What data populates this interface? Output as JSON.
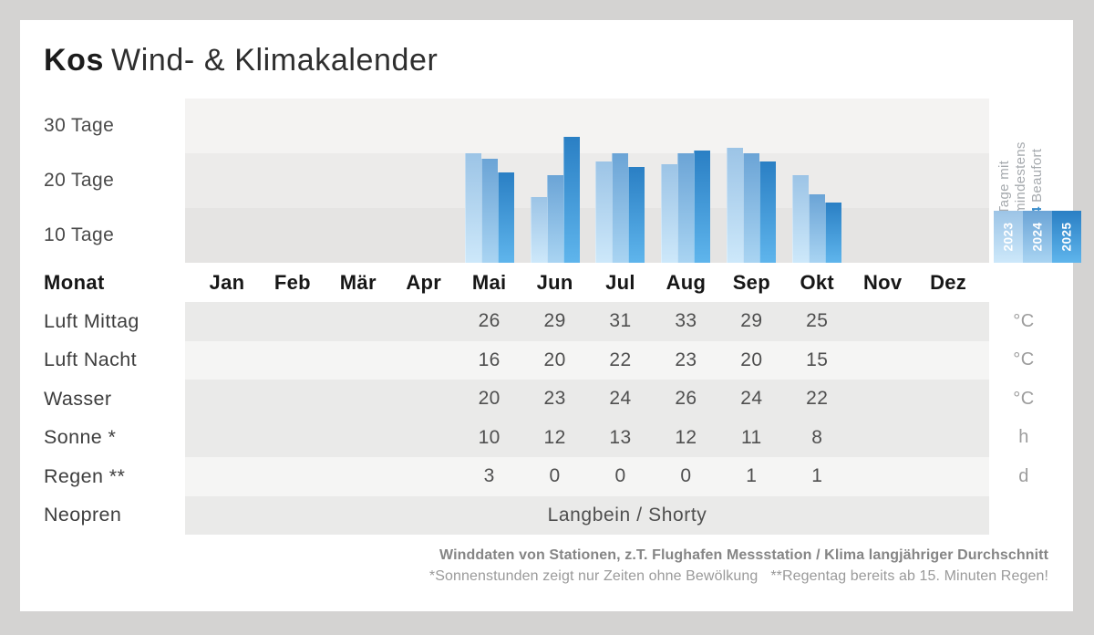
{
  "title": {
    "location": "Kos",
    "subtitle": "Wind- & Klimakalender"
  },
  "chart_data": {
    "type": "bar",
    "title": "Tage mit mindestens 4 Beaufort",
    "unit": "Tage",
    "categories": [
      "Jan",
      "Feb",
      "Mär",
      "Apr",
      "Mai",
      "Jun",
      "Jul",
      "Aug",
      "Sep",
      "Okt",
      "Nov",
      "Dez"
    ],
    "series": [
      {
        "name": "2023",
        "color_top": "#9cc4e6",
        "color_bottom": "#cde8fa",
        "values": [
          null,
          null,
          null,
          null,
          20,
          12,
          18.5,
          18,
          21,
          16,
          null,
          null
        ]
      },
      {
        "name": "2024",
        "color_top": "#6ba4d6",
        "color_bottom": "#a9d4f2",
        "values": [
          null,
          null,
          null,
          null,
          19,
          16,
          20,
          20,
          20,
          12.5,
          null,
          null
        ]
      },
      {
        "name": "2025",
        "color_top": "#2a7fc4",
        "color_bottom": "#5fb5ec",
        "values": [
          null,
          null,
          null,
          null,
          16.5,
          23,
          17.5,
          20.5,
          18.5,
          11,
          null,
          null
        ]
      }
    ],
    "ylim": [
      0,
      30
    ],
    "ytick_labels": [
      "30 Tage",
      "20 Tage",
      "10 Tage"
    ],
    "grid_band_colors": [
      "#f4f3f2",
      "#ecebea",
      "#e5e4e3"
    ],
    "legend_lines": [
      "Tage mit",
      "mindestens",
      "4 Beaufort"
    ],
    "legend_highlight": "4",
    "legend_position": "right-rotated"
  },
  "table": {
    "header_label": "Monat",
    "months": [
      "Jan",
      "Feb",
      "Mär",
      "Apr",
      "Mai",
      "Jun",
      "Jul",
      "Aug",
      "Sep",
      "Okt",
      "Nov",
      "Dez"
    ],
    "rows": [
      {
        "label": "Luft Mittag",
        "unit": "°C",
        "shade": "dark",
        "values": [
          "",
          "",
          "",
          "",
          "26",
          "29",
          "31",
          "33",
          "29",
          "25",
          "",
          ""
        ]
      },
      {
        "label": "Luft Nacht",
        "unit": "°C",
        "shade": "light",
        "values": [
          "",
          "",
          "",
          "",
          "16",
          "20",
          "22",
          "23",
          "20",
          "15",
          "",
          ""
        ]
      },
      {
        "label": "Wasser",
        "unit": "°C",
        "shade": "dark",
        "values": [
          "",
          "",
          "",
          "",
          "20",
          "23",
          "24",
          "26",
          "24",
          "22",
          "",
          ""
        ]
      },
      {
        "label": "Sonne *",
        "unit": "h",
        "shade": "dark",
        "values": [
          "",
          "",
          "",
          "",
          "10",
          "12",
          "13",
          "12",
          "11",
          "8",
          "",
          ""
        ]
      },
      {
        "label": "Regen **",
        "unit": "d",
        "shade": "light",
        "values": [
          "",
          "",
          "",
          "",
          "3",
          "0",
          "0",
          "0",
          "1",
          "1",
          "",
          ""
        ]
      },
      {
        "label": "Neopren",
        "unit": "",
        "shade": "dark",
        "span_value": "Langbein / Shorty",
        "values": [
          "",
          "",
          "",
          "",
          "",
          "",
          "",
          "",
          "",
          "",
          "",
          ""
        ]
      }
    ]
  },
  "footer": {
    "source": "Winddaten von Stationen, z.T. Flughafen Messstation / Klima langjähriger Durchschnitt",
    "note_sun": "*Sonnenstunden zeigt nur Zeiten ohne Bewölkung",
    "note_rain": "**Regentag bereits ab 15. Minuten Regen!"
  },
  "colors": {
    "page_background": "#d4d3d2",
    "card_background": "#ffffff",
    "accent_blue": "#3a8dcb",
    "row_shade_dark": "#eaeae9",
    "row_shade_light": "#f5f5f4"
  }
}
